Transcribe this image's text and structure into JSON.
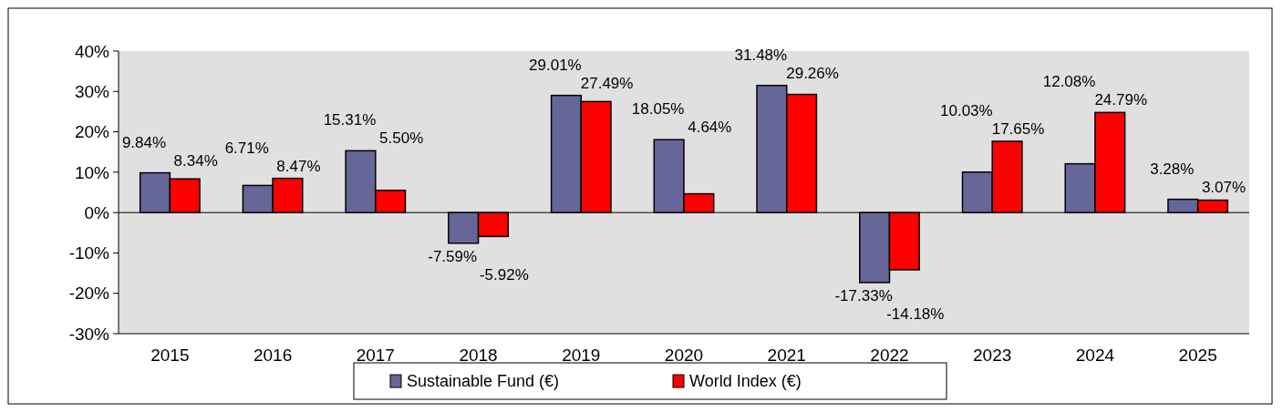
{
  "chart_data": {
    "type": "bar",
    "categories": [
      "2015",
      "2016",
      "2017",
      "2018",
      "2019",
      "2020",
      "2021",
      "2022",
      "2023",
      "2024",
      "2025"
    ],
    "series": [
      {
        "name": "Sustainable Fund (€)",
        "color": "#666699",
        "values": [
          9.84,
          6.71,
          15.31,
          -7.59,
          29.01,
          18.05,
          31.48,
          -17.33,
          10.03,
          12.08,
          3.28
        ]
      },
      {
        "name": "World Index (€)",
        "color": "#ff0000",
        "values": [
          8.34,
          8.47,
          5.5,
          -5.92,
          27.49,
          4.64,
          29.26,
          -14.18,
          17.65,
          24.79,
          3.07
        ]
      }
    ],
    "ylim": [
      -30,
      40
    ],
    "yticks": [
      {
        "value": -30,
        "label": "-30%"
      },
      {
        "value": -20,
        "label": "-20%"
      },
      {
        "value": -10,
        "label": "-10%"
      },
      {
        "value": 0,
        "label": "0%"
      },
      {
        "value": 10,
        "label": "10%"
      },
      {
        "value": 20,
        "label": "20%"
      },
      {
        "value": 30,
        "label": "30%"
      },
      {
        "value": 40,
        "label": "40%"
      }
    ],
    "value_labels": [
      [
        "9.84%",
        "6.71%",
        "15.31%",
        "-7.59%",
        "29.01%",
        "18.05%",
        "31.48%",
        "-17.33%",
        "10.03%",
        "12.08%",
        "3.28%"
      ],
      [
        "8.34%",
        "8.47%",
        "5.50%",
        "-5.92%",
        "27.49%",
        "4.64%",
        "29.26%",
        "-14.18%",
        "17.65%",
        "24.79%",
        "3.07%"
      ]
    ],
    "legend": "bottom"
  }
}
